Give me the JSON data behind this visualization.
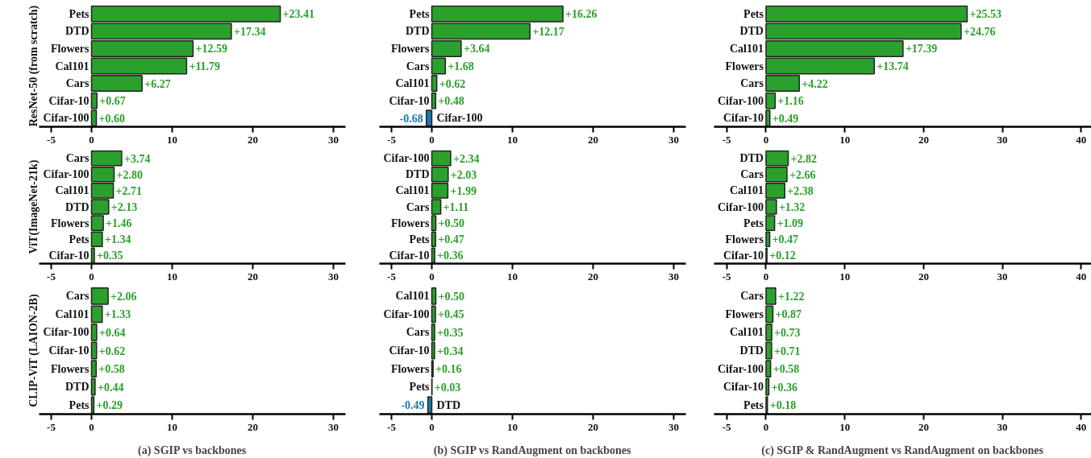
{
  "chart_data": [
    {
      "type": "bar",
      "orientation": "horizontal",
      "ylabel": "ResNet-50 (from scratch)",
      "categories": [
        "Pets",
        "DTD",
        "Flowers",
        "Cal101",
        "Cars",
        "Cifar-10",
        "Cifar-100"
      ],
      "values": [
        23.41,
        17.34,
        12.59,
        11.79,
        6.27,
        0.67,
        0.6
      ],
      "value_labels": [
        "+23.41",
        "+17.34",
        "+12.59",
        "+11.79",
        "+6.27",
        "+0.67",
        "+0.60"
      ],
      "colors": [
        "#2ca02c",
        "#2ca02c",
        "#2ca02c",
        "#2ca02c",
        "#2ca02c",
        "#2ca02c",
        "#2ca02c"
      ],
      "xlim": [
        -6.5,
        31.5
      ],
      "xticks": [
        -5,
        0,
        10,
        20,
        30
      ]
    },
    {
      "type": "bar",
      "orientation": "horizontal",
      "categories": [
        "Pets",
        "DTD",
        "Flowers",
        "Cars",
        "Cal101",
        "Cifar-10",
        "Cifar-100"
      ],
      "values": [
        16.26,
        12.17,
        3.64,
        1.68,
        0.62,
        0.48,
        -0.68
      ],
      "value_labels": [
        "+16.26",
        "+12.17",
        "+3.64",
        "+1.68",
        "+0.62",
        "+0.48",
        "-0.68"
      ],
      "colors": [
        "#2ca02c",
        "#2ca02c",
        "#2ca02c",
        "#2ca02c",
        "#2ca02c",
        "#2ca02c",
        "#1f77b4"
      ],
      "xlim": [
        -6.5,
        31.5
      ],
      "xticks": [
        -5,
        0,
        10,
        20,
        30
      ]
    },
    {
      "type": "bar",
      "orientation": "horizontal",
      "categories": [
        "Pets",
        "DTD",
        "Cal101",
        "Flowers",
        "Cars",
        "Cifar-100",
        "Cifar-10"
      ],
      "values": [
        25.53,
        24.76,
        17.39,
        13.74,
        4.22,
        1.16,
        0.49
      ],
      "value_labels": [
        "+25.53",
        "+24.76",
        "+17.39",
        "+13.74",
        "+4.22",
        "+1.16",
        "+0.49"
      ],
      "colors": [
        "#2ca02c",
        "#2ca02c",
        "#2ca02c",
        "#2ca02c",
        "#2ca02c",
        "#2ca02c",
        "#2ca02c"
      ],
      "xlim": [
        -6.6,
        41.3
      ],
      "xticks": [
        -5,
        0,
        10,
        20,
        30,
        40
      ]
    },
    {
      "type": "bar",
      "orientation": "horizontal",
      "ylabel": "ViT(ImageNet-21k)",
      "categories": [
        "Cars",
        "Cifar-100",
        "Cal101",
        "DTD",
        "Flowers",
        "Pets",
        "Cifar-10"
      ],
      "values": [
        3.74,
        2.8,
        2.71,
        2.13,
        1.46,
        1.34,
        0.35
      ],
      "value_labels": [
        "+3.74",
        "+2.80",
        "+2.71",
        "+2.13",
        "+1.46",
        "+1.34",
        "+0.35"
      ],
      "colors": [
        "#2ca02c",
        "#2ca02c",
        "#2ca02c",
        "#2ca02c",
        "#2ca02c",
        "#2ca02c",
        "#2ca02c"
      ],
      "xlim": [
        -6.5,
        31.5
      ],
      "xticks": [
        -5,
        0,
        10,
        20,
        30
      ]
    },
    {
      "type": "bar",
      "orientation": "horizontal",
      "categories": [
        "Cifar-100",
        "DTD",
        "Cal101",
        "Cars",
        "Flowers",
        "Pets",
        "Cifar-10"
      ],
      "values": [
        2.34,
        2.03,
        1.99,
        1.11,
        0.5,
        0.47,
        0.36
      ],
      "value_labels": [
        "+2.34",
        "+2.03",
        "+1.99",
        "+1.11",
        "+0.50",
        "+0.47",
        "+0.36"
      ],
      "colors": [
        "#2ca02c",
        "#2ca02c",
        "#2ca02c",
        "#2ca02c",
        "#2ca02c",
        "#2ca02c",
        "#2ca02c"
      ],
      "xlim": [
        -6.5,
        31.5
      ],
      "xticks": [
        -5,
        0,
        10,
        20,
        30
      ]
    },
    {
      "type": "bar",
      "orientation": "horizontal",
      "categories": [
        "DTD",
        "Cars",
        "Cal101",
        "Cifar-100",
        "Pets",
        "Flowers",
        "Cifar-10"
      ],
      "values": [
        2.82,
        2.66,
        2.38,
        1.32,
        1.09,
        0.47,
        0.12
      ],
      "value_labels": [
        "+2.82",
        "+2.66",
        "+2.38",
        "+1.32",
        "+1.09",
        "+0.47",
        "+0.12"
      ],
      "colors": [
        "#2ca02c",
        "#2ca02c",
        "#2ca02c",
        "#2ca02c",
        "#2ca02c",
        "#2ca02c",
        "#2ca02c"
      ],
      "xlim": [
        -6.6,
        41.3
      ],
      "xticks": [
        -5,
        0,
        10,
        20,
        30,
        40
      ]
    },
    {
      "type": "bar",
      "orientation": "horizontal",
      "ylabel": "CLIP-ViT (LAION-2B)",
      "xlabel": "(a) SGIP vs backbones",
      "categories": [
        "Cars",
        "Cal101",
        "Cifar-100",
        "Cifar-10",
        "Flowers",
        "DTD",
        "Pets"
      ],
      "values": [
        2.06,
        1.33,
        0.64,
        0.62,
        0.58,
        0.44,
        0.29
      ],
      "value_labels": [
        "+2.06",
        "+1.33",
        "+0.64",
        "+0.62",
        "+0.58",
        "+0.44",
        "+0.29"
      ],
      "colors": [
        "#2ca02c",
        "#2ca02c",
        "#2ca02c",
        "#2ca02c",
        "#2ca02c",
        "#2ca02c",
        "#2ca02c"
      ],
      "xlim": [
        -6.5,
        31.5
      ],
      "xticks": [
        -5,
        0,
        10,
        20,
        30
      ]
    },
    {
      "type": "bar",
      "orientation": "horizontal",
      "xlabel": "(b) SGIP vs RandAugment on backbones",
      "categories": [
        "Cal101",
        "Cifar-100",
        "Cars",
        "Cifar-10",
        "Flowers",
        "Pets",
        "DTD"
      ],
      "values": [
        0.5,
        0.45,
        0.35,
        0.34,
        0.16,
        0.03,
        -0.49
      ],
      "value_labels": [
        "+0.50",
        "+0.45",
        "+0.35",
        "+0.34",
        "+0.16",
        "+0.03",
        "-0.49"
      ],
      "colors": [
        "#2ca02c",
        "#2ca02c",
        "#2ca02c",
        "#2ca02c",
        "#2ca02c",
        "#2ca02c",
        "#1f77b4"
      ],
      "xlim": [
        -6.5,
        31.5
      ],
      "xticks": [
        -5,
        0,
        10,
        20,
        30
      ]
    },
    {
      "type": "bar",
      "orientation": "horizontal",
      "xlabel": "(c) SGIP & RandAugment vs RandAugment on backbones",
      "categories": [
        "Cars",
        "Flowers",
        "Cal101",
        "DTD",
        "Cifar-100",
        "Cifar-10",
        "Pets"
      ],
      "values": [
        1.22,
        0.87,
        0.73,
        0.71,
        0.58,
        0.36,
        0.18
      ],
      "value_labels": [
        "+1.22",
        "+0.87",
        "+0.73",
        "+0.71",
        "+0.58",
        "+0.36",
        "+0.18"
      ],
      "colors": [
        "#2ca02c",
        "#2ca02c",
        "#2ca02c",
        "#2ca02c",
        "#2ca02c",
        "#2ca02c",
        "#2ca02c"
      ],
      "xlim": [
        -6.6,
        41.3
      ],
      "xticks": [
        -5,
        0,
        10,
        20,
        30,
        40
      ]
    }
  ]
}
